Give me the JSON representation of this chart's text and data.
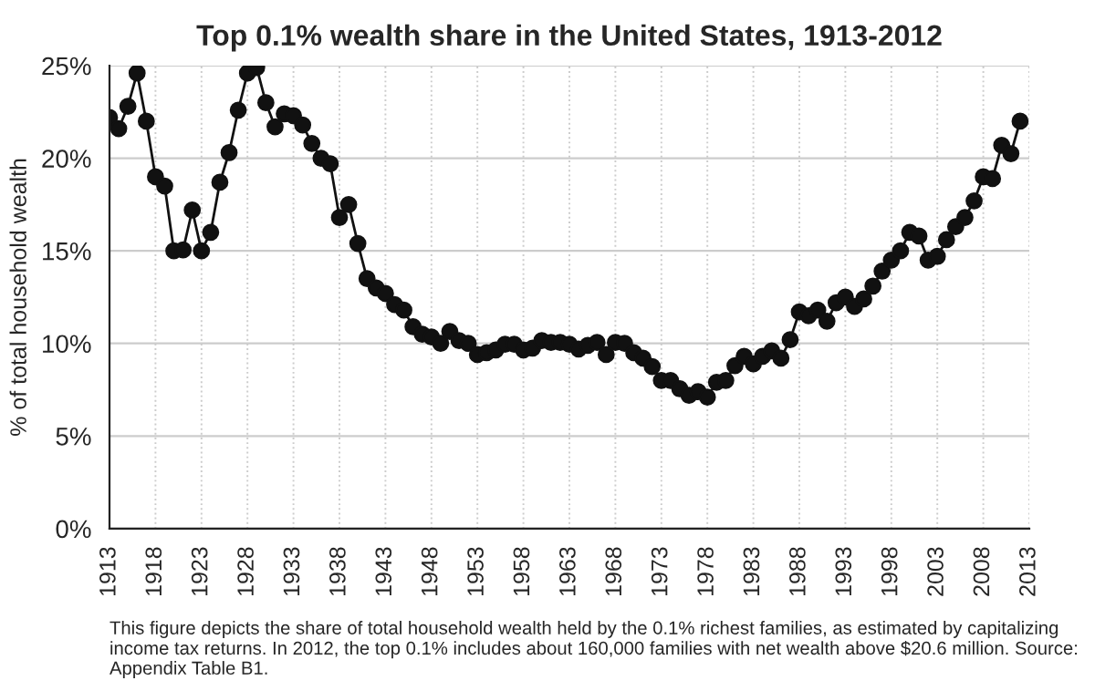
{
  "chart_data": {
    "type": "line",
    "title": "Top 0.1% wealth share in the United States, 1913-2012",
    "ylabel": "% of total household wealth",
    "x": [
      1913,
      1914,
      1915,
      1916,
      1917,
      1918,
      1919,
      1920,
      1921,
      1922,
      1923,
      1924,
      1925,
      1926,
      1927,
      1928,
      1929,
      1930,
      1931,
      1932,
      1933,
      1934,
      1935,
      1936,
      1937,
      1938,
      1939,
      1940,
      1941,
      1942,
      1943,
      1944,
      1945,
      1946,
      1947,
      1948,
      1949,
      1950,
      1951,
      1952,
      1953,
      1954,
      1955,
      1956,
      1957,
      1958,
      1959,
      1960,
      1961,
      1962,
      1963,
      1964,
      1965,
      1966,
      1967,
      1968,
      1969,
      1970,
      1971,
      1972,
      1973,
      1974,
      1975,
      1976,
      1977,
      1978,
      1979,
      1980,
      1981,
      1982,
      1983,
      1984,
      1985,
      1986,
      1987,
      1988,
      1989,
      1990,
      1991,
      1992,
      1993,
      1994,
      1995,
      1996,
      1997,
      1998,
      1999,
      2000,
      2001,
      2002,
      2003,
      2004,
      2005,
      2006,
      2007,
      2008,
      2009,
      2010,
      2011,
      2012
    ],
    "series": [
      {
        "color": "#111111",
        "values": [
          22.2,
          21.6,
          22.8,
          24.6,
          22.0,
          19.0,
          18.5,
          15.0,
          15.05,
          17.2,
          15.0,
          16.0,
          18.7,
          20.3,
          22.6,
          24.6,
          24.9,
          23.0,
          21.7,
          22.4,
          22.3,
          21.8,
          20.8,
          20.0,
          19.7,
          16.8,
          17.5,
          15.4,
          13.5,
          13.0,
          12.7,
          12.1,
          11.8,
          10.9,
          10.5,
          10.35,
          10.0,
          10.65,
          10.15,
          10.0,
          9.4,
          9.5,
          9.65,
          9.95,
          9.95,
          9.65,
          9.75,
          10.15,
          10.05,
          10.05,
          9.95,
          9.7,
          9.9,
          10.05,
          9.4,
          10.05,
          10.0,
          9.5,
          9.2,
          8.75,
          8.0,
          8.0,
          7.55,
          7.2,
          7.4,
          7.1,
          7.9,
          8.0,
          8.8,
          9.3,
          8.9,
          9.3,
          9.6,
          9.2,
          10.2,
          11.7,
          11.5,
          11.8,
          11.2,
          12.2,
          12.5,
          12.0,
          12.4,
          13.1,
          13.9,
          14.5,
          15.0,
          16.0,
          15.8,
          14.5,
          14.7,
          15.6,
          16.3,
          16.8,
          17.7,
          19.0,
          18.9,
          20.7,
          20.25,
          22.0
        ]
      }
    ],
    "xlim": [
      1913,
      2013
    ],
    "xticks": [
      1913,
      1918,
      1923,
      1928,
      1933,
      1938,
      1943,
      1948,
      1953,
      1958,
      1963,
      1968,
      1973,
      1978,
      1983,
      1988,
      1993,
      1998,
      2003,
      2008,
      2013
    ],
    "ylim": [
      0,
      25
    ],
    "yticks": [
      {
        "value": 0,
        "label": "0%"
      },
      {
        "value": 5,
        "label": "5%"
      },
      {
        "value": 10,
        "label": "10%"
      },
      {
        "value": 15,
        "label": "15%"
      },
      {
        "value": 20,
        "label": "20%"
      },
      {
        "value": 25,
        "label": "25%"
      }
    ],
    "grid": true,
    "marker": "circle",
    "line_style": "solid",
    "annotations": [
      "This figure depicts the share of total household wealth held by the 0.1% richest families, as estimated by capitalizing income tax returns. In 2012, the top 0.1% includes about 160,000 families with net wealth above $20.6 million. Source: Appendix Table B1."
    ]
  }
}
